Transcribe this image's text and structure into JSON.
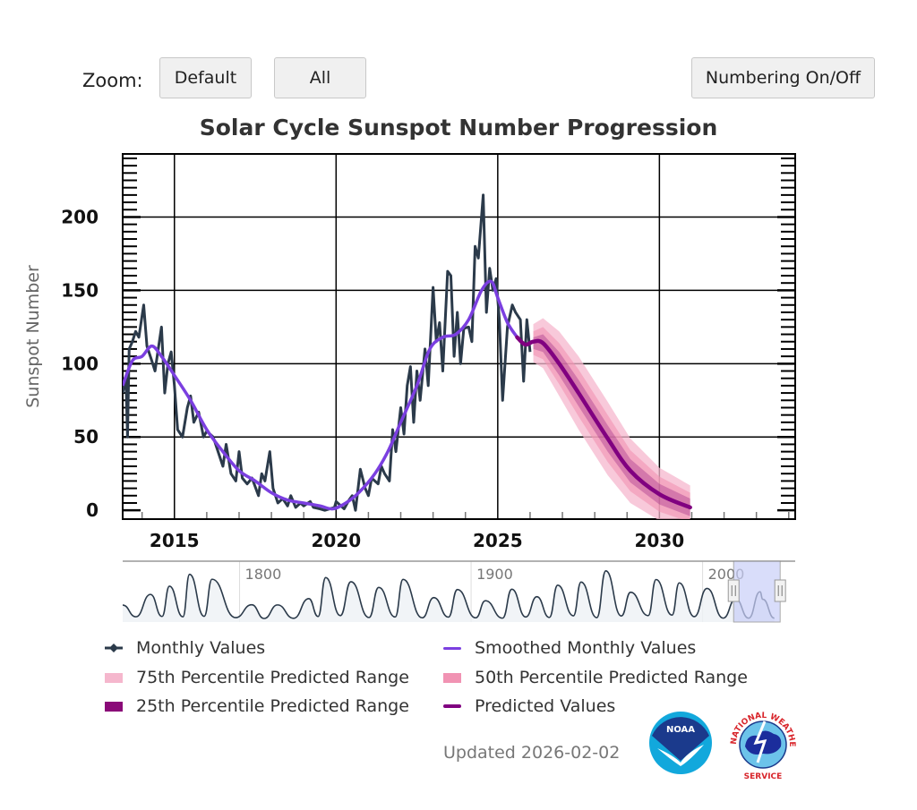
{
  "toolbar": {
    "zoom_label": "Zoom:",
    "default_label": "Default",
    "all_label": "All",
    "numbering_label": "Numbering On/Off"
  },
  "updated": "Updated 2026-02-02",
  "logos": {
    "noaa": "NOAA",
    "nws": "NATIONAL WEATHER SERVICE"
  },
  "colors": {
    "monthly": "#2b3a4a",
    "smoothed": "#7b3fe0",
    "predicted": "#800080",
    "p75": "#f5b7cd",
    "p50": "#f193b3",
    "p25": "#8a0a78",
    "navigator_selection": "#c9cff8"
  },
  "chart_data": {
    "type": "line",
    "title": "Solar Cycle Sunspot Number Progression",
    "xlabel": "",
    "ylabel": "Sunspot Number",
    "xlim": [
      2013.4,
      2034.2
    ],
    "ylim": [
      -6,
      243
    ],
    "grid": true,
    "x_ticks": [
      "2015",
      "2020",
      "2025",
      "2030"
    ],
    "y_ticks": [
      "0",
      "50",
      "100",
      "150",
      "200"
    ],
    "legend": {
      "placement": "bottom",
      "entries": [
        "Monthly Values",
        "Smoothed Monthly Values",
        "75th Percentile Predicted Range",
        "50th Percentile Predicted Range",
        "25th Percentile Predicted Range",
        "Predicted Values"
      ]
    },
    "series": [
      {
        "name": "Monthly Values",
        "points": [
          [
            2013.4,
            80
          ],
          [
            2013.5,
            90
          ],
          [
            2013.55,
            50
          ],
          [
            2013.6,
            110
          ],
          [
            2013.7,
            115
          ],
          [
            2013.8,
            122
          ],
          [
            2013.9,
            118
          ],
          [
            2014.05,
            140
          ],
          [
            2014.15,
            112
          ],
          [
            2014.3,
            102
          ],
          [
            2014.4,
            95
          ],
          [
            2014.6,
            125
          ],
          [
            2014.7,
            80
          ],
          [
            2014.8,
            100
          ],
          [
            2014.9,
            108
          ],
          [
            2015.0,
            85
          ],
          [
            2015.1,
            55
          ],
          [
            2015.25,
            50
          ],
          [
            2015.4,
            70
          ],
          [
            2015.5,
            78
          ],
          [
            2015.6,
            60
          ],
          [
            2015.75,
            67
          ],
          [
            2015.9,
            50
          ],
          [
            2016.0,
            54
          ],
          [
            2016.2,
            50
          ],
          [
            2016.35,
            40
          ],
          [
            2016.5,
            30
          ],
          [
            2016.6,
            45
          ],
          [
            2016.75,
            25
          ],
          [
            2016.9,
            20
          ],
          [
            2017.0,
            40
          ],
          [
            2017.1,
            22
          ],
          [
            2017.25,
            18
          ],
          [
            2017.4,
            22
          ],
          [
            2017.6,
            10
          ],
          [
            2017.7,
            25
          ],
          [
            2017.8,
            20
          ],
          [
            2017.95,
            40
          ],
          [
            2018.05,
            15
          ],
          [
            2018.2,
            5
          ],
          [
            2018.35,
            8
          ],
          [
            2018.5,
            3
          ],
          [
            2018.6,
            10
          ],
          [
            2018.75,
            2
          ],
          [
            2018.9,
            5
          ],
          [
            2019.0,
            3
          ],
          [
            2019.2,
            6
          ],
          [
            2019.3,
            2
          ],
          [
            2019.5,
            1
          ],
          [
            2019.65,
            0
          ],
          [
            2019.8,
            1
          ],
          [
            2019.95,
            2
          ],
          [
            2020.0,
            6
          ],
          [
            2020.1,
            4
          ],
          [
            2020.25,
            1
          ],
          [
            2020.4,
            7
          ],
          [
            2020.5,
            10
          ],
          [
            2020.6,
            0
          ],
          [
            2020.75,
            28
          ],
          [
            2020.9,
            15
          ],
          [
            2021.0,
            10
          ],
          [
            2021.1,
            22
          ],
          [
            2021.3,
            18
          ],
          [
            2021.4,
            30
          ],
          [
            2021.5,
            25
          ],
          [
            2021.65,
            20
          ],
          [
            2021.75,
            55
          ],
          [
            2021.85,
            40
          ],
          [
            2022.0,
            70
          ],
          [
            2022.1,
            52
          ],
          [
            2022.2,
            85
          ],
          [
            2022.3,
            98
          ],
          [
            2022.4,
            60
          ],
          [
            2022.5,
            95
          ],
          [
            2022.6,
            75
          ],
          [
            2022.75,
            110
          ],
          [
            2022.85,
            85
          ],
          [
            2023.0,
            152
          ],
          [
            2023.1,
            115
          ],
          [
            2023.2,
            128
          ],
          [
            2023.3,
            95
          ],
          [
            2023.45,
            163
          ],
          [
            2023.55,
            160
          ],
          [
            2023.65,
            105
          ],
          [
            2023.75,
            135
          ],
          [
            2023.85,
            100
          ],
          [
            2023.95,
            124
          ],
          [
            2024.1,
            125
          ],
          [
            2024.2,
            115
          ],
          [
            2024.3,
            180
          ],
          [
            2024.4,
            172
          ],
          [
            2024.55,
            215
          ],
          [
            2024.65,
            135
          ],
          [
            2024.75,
            165
          ],
          [
            2024.85,
            150
          ],
          [
            2024.95,
            158
          ],
          [
            2025.05,
            130
          ],
          [
            2025.15,
            75
          ],
          [
            2025.3,
            125
          ],
          [
            2025.45,
            140
          ],
          [
            2025.55,
            135
          ],
          [
            2025.7,
            130
          ],
          [
            2025.8,
            88
          ],
          [
            2025.9,
            130
          ],
          [
            2026.0,
            108
          ]
        ]
      },
      {
        "name": "Smoothed Monthly Values",
        "points": [
          [
            2013.4,
            85
          ],
          [
            2013.7,
            102
          ],
          [
            2014.0,
            105
          ],
          [
            2014.3,
            112
          ],
          [
            2014.6,
            105
          ],
          [
            2015.0,
            92
          ],
          [
            2015.5,
            75
          ],
          [
            2016.0,
            55
          ],
          [
            2016.5,
            40
          ],
          [
            2017.0,
            27
          ],
          [
            2017.5,
            20
          ],
          [
            2018.0,
            12
          ],
          [
            2018.5,
            7
          ],
          [
            2019.0,
            5
          ],
          [
            2019.5,
            3
          ],
          [
            2019.9,
            1
          ],
          [
            2020.3,
            5
          ],
          [
            2020.7,
            12
          ],
          [
            2021.2,
            25
          ],
          [
            2021.6,
            40
          ],
          [
            2022.0,
            60
          ],
          [
            2022.5,
            85
          ],
          [
            2022.9,
            110
          ],
          [
            2023.3,
            118
          ],
          [
            2023.7,
            120
          ],
          [
            2024.1,
            130
          ],
          [
            2024.5,
            150
          ],
          [
            2024.8,
            156
          ],
          [
            2025.0,
            145
          ],
          [
            2025.3,
            128
          ],
          [
            2025.6,
            118
          ]
        ]
      },
      {
        "name": "Predicted Values",
        "points": [
          [
            2025.6,
            118
          ],
          [
            2025.85,
            113
          ],
          [
            2026.1,
            115
          ],
          [
            2026.4,
            114
          ],
          [
            2026.9,
            100
          ],
          [
            2027.5,
            80
          ],
          [
            2028.4,
            49
          ],
          [
            2029.1,
            27
          ],
          [
            2030.0,
            11
          ],
          [
            2030.95,
            2
          ]
        ]
      }
    ],
    "ranges": {
      "x": [
        2026.1,
        2026.4,
        2026.9,
        2027.5,
        2028.4,
        2029.1,
        2030.0,
        2030.95
      ],
      "75th Percentile Predicted Range": {
        "lower": [
          101,
          97,
          78,
          55,
          24,
          5,
          -7,
          -13
        ],
        "upper": [
          127,
          131,
          122,
          105,
          74,
          49,
          29,
          17
        ]
      },
      "50th Percentile Predicted Range": {
        "lower": [
          106,
          103,
          86,
          64,
          33,
          13,
          -1,
          -8
        ],
        "upper": [
          122,
          125,
          114,
          96,
          65,
          41,
          23,
          12
        ]
      },
      "25th Percentile Predicted Range": {
        "lower": [
          110,
          108,
          92,
          71,
          40,
          19,
          4,
          -4
        ],
        "upper": [
          118,
          120,
          108,
          89,
          58,
          35,
          18,
          8
        ]
      }
    },
    "navigator": {
      "x_ticks": [
        "1800",
        "1900",
        "2000"
      ],
      "xlim": [
        1749.5,
        2040
      ],
      "selection": [
        2013.4,
        2033.5
      ],
      "points": [
        [
          1749.5,
          80
        ],
        [
          1755.2,
          10
        ],
        [
          1761.5,
          144
        ],
        [
          1766.5,
          12
        ],
        [
          1769.7,
          193
        ],
        [
          1775.5,
          10
        ],
        [
          1778.4,
          264
        ],
        [
          1784.7,
          13
        ],
        [
          1788.1,
          235
        ],
        [
          1798.3,
          5
        ],
        [
          1805.2,
          82
        ],
        [
          1810.6,
          0
        ],
        [
          1816.4,
          81
        ],
        [
          1823.3,
          1
        ],
        [
          1829.9,
          119
        ],
        [
          1833.9,
          12
        ],
        [
          1837.2,
          245
        ],
        [
          1843.5,
          17
        ],
        [
          1848.1,
          220
        ],
        [
          1855.9,
          6
        ],
        [
          1860.1,
          186
        ],
        [
          1867.2,
          9
        ],
        [
          1870.6,
          234
        ],
        [
          1878.9,
          4
        ],
        [
          1883.9,
          125
        ],
        [
          1890.2,
          8
        ],
        [
          1894.1,
          173
        ],
        [
          1902.0,
          4
        ],
        [
          1906.2,
          106
        ],
        [
          1913.6,
          2
        ],
        [
          1917.6,
          175
        ],
        [
          1923.6,
          9
        ],
        [
          1928.4,
          130
        ],
        [
          1933.8,
          6
        ],
        [
          1937.4,
          199
        ],
        [
          1944.2,
          16
        ],
        [
          1947.5,
          218
        ],
        [
          1954.3,
          5
        ],
        [
          1958.2,
          285
        ],
        [
          1964.9,
          15
        ],
        [
          1968.9,
          157
        ],
        [
          1976.5,
          17
        ],
        [
          1979.9,
          233
        ],
        [
          1986.8,
          20
        ],
        [
          1989.9,
          213
        ],
        [
          1996.4,
          11
        ],
        [
          2001.9,
          180
        ],
        [
          2008.9,
          2
        ],
        [
          2014.3,
          116
        ],
        [
          2019.9,
          2
        ],
        [
          2024.8,
          160
        ],
        [
          2026.0,
          115
        ],
        [
          2031.0,
          2
        ]
      ]
    }
  }
}
